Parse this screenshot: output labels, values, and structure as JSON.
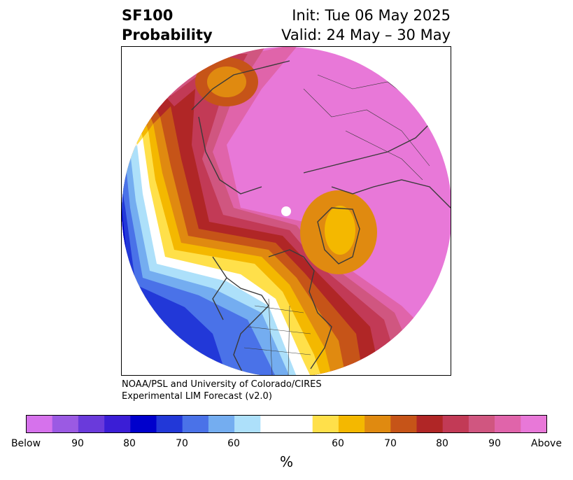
{
  "header": {
    "product_line1": "SF100",
    "product_line2": "Probability",
    "init_text": "Init: Tue 06 May 2025",
    "valid_text": "Valid: 24 May – 30 May"
  },
  "credit": {
    "line1": "NOAA/PSL and University of Colorado/CIRES",
    "line2": "Experimental LIM Forecast (v2.0)"
  },
  "colorbar": {
    "unit": "%",
    "colors": [
      "#d672ec",
      "#9b5ae3",
      "#6a3adb",
      "#3b1ed6",
      "#0000cc",
      "#2238d8",
      "#4a72e8",
      "#74adf0",
      "#ade0fa",
      "#ffffff",
      "#ffffff",
      "#ffe04a",
      "#f4b800",
      "#e08a10",
      "#c65418",
      "#b02626",
      "#c23a56",
      "#d05680",
      "#e064aa",
      "#e878d8"
    ],
    "tick_labels": [
      "Below",
      "90",
      "80",
      "70",
      "60",
      "60",
      "70",
      "80",
      "90",
      "Above"
    ]
  },
  "map": {
    "colors": {
      "above_pink": "#e878d8",
      "pink2": "#e064aa",
      "rose": "#d05680",
      "crimson": "#c23a56",
      "red": "#b02626",
      "orange_dark": "#c65418",
      "orange": "#e08a10",
      "amber": "#f4b800",
      "yellow": "#ffe04a",
      "light_blue": "#ade0fa",
      "sky_blue": "#74adf0",
      "mid_blue": "#4a72e8",
      "blue": "#2238d8",
      "deep_blue": "#0000cc",
      "outline": "#3a3a3a"
    }
  }
}
